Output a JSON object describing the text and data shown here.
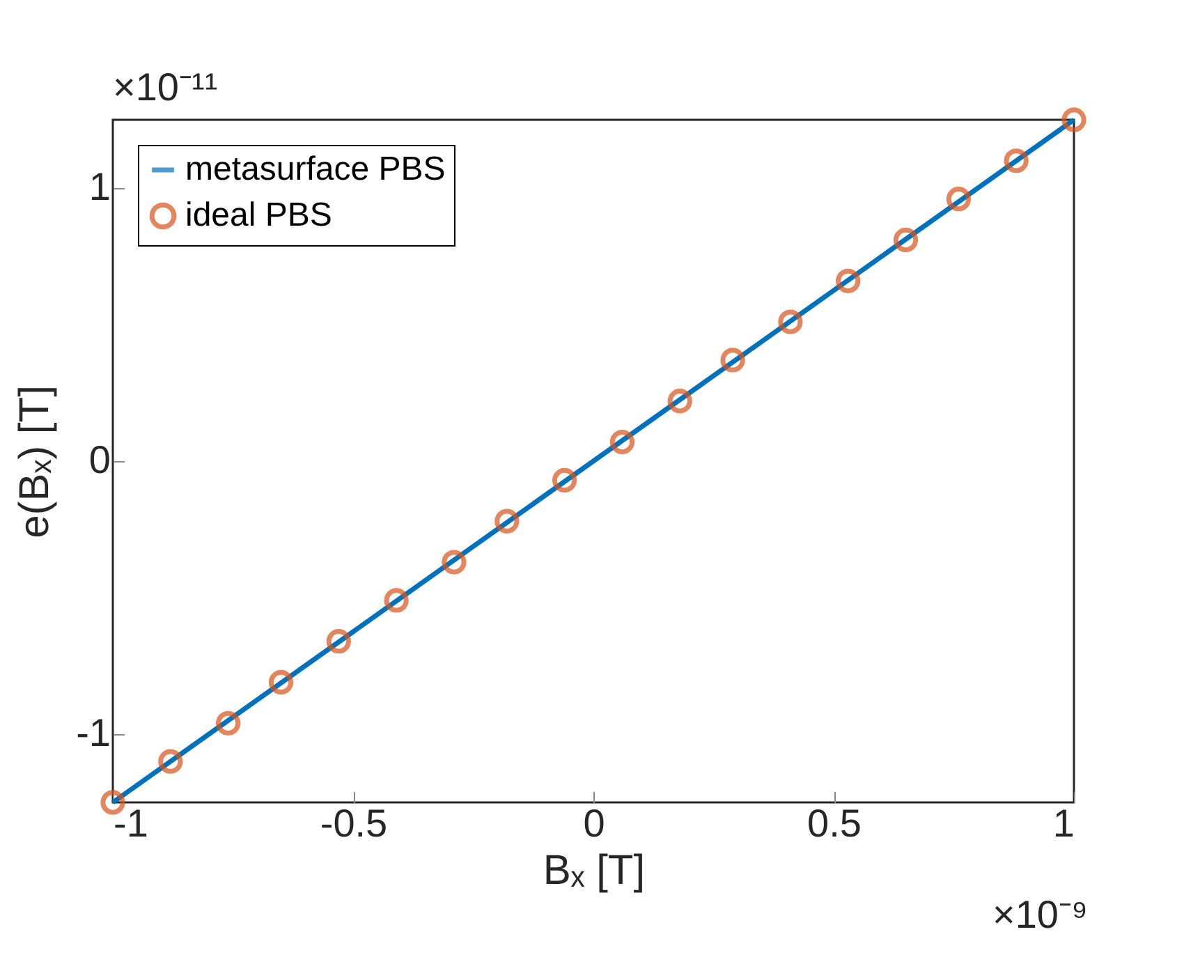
{
  "chart_data": {
    "type": "line",
    "xlabel": "Bₓ [T]",
    "ylabel": "e(Bₓ) [T]",
    "annotations": [
      "×10⁻¹¹",
      "×10⁻⁹"
    ],
    "xlim": [
      -1,
      1
    ],
    "xticks": [
      -1,
      -0.5,
      0,
      0.5,
      1
    ],
    "ylim": [
      -1.25,
      1.25
    ],
    "yticks": [
      -1,
      0,
      1
    ],
    "grid": false,
    "legend": "top left",
    "series": [
      {
        "name": "metasurface PBS",
        "color": "#0072bd",
        "type": "line",
        "line_style": "solid",
        "marker": "none",
        "x": [
          -1,
          1
        ],
        "values": [
          -1.25,
          1.25
        ]
      },
      {
        "name": "ideal PBS",
        "color": "#d95319",
        "type": "scatter",
        "marker": "circle",
        "x": [
          -1,
          -0.88,
          -0.76,
          -0.65,
          -0.53,
          -0.41,
          -0.29,
          -0.18,
          -0.06,
          0.06,
          0.18,
          0.29,
          0.41,
          0.53,
          0.65,
          0.76,
          0.88,
          1
        ],
        "values": [
          -1.25,
          -1.1,
          -0.96,
          -0.81,
          -0.66,
          -0.51,
          -0.37,
          -0.22,
          -0.07,
          0.07,
          0.22,
          0.37,
          0.51,
          0.66,
          0.81,
          0.96,
          1.1,
          1.25
        ]
      }
    ]
  }
}
